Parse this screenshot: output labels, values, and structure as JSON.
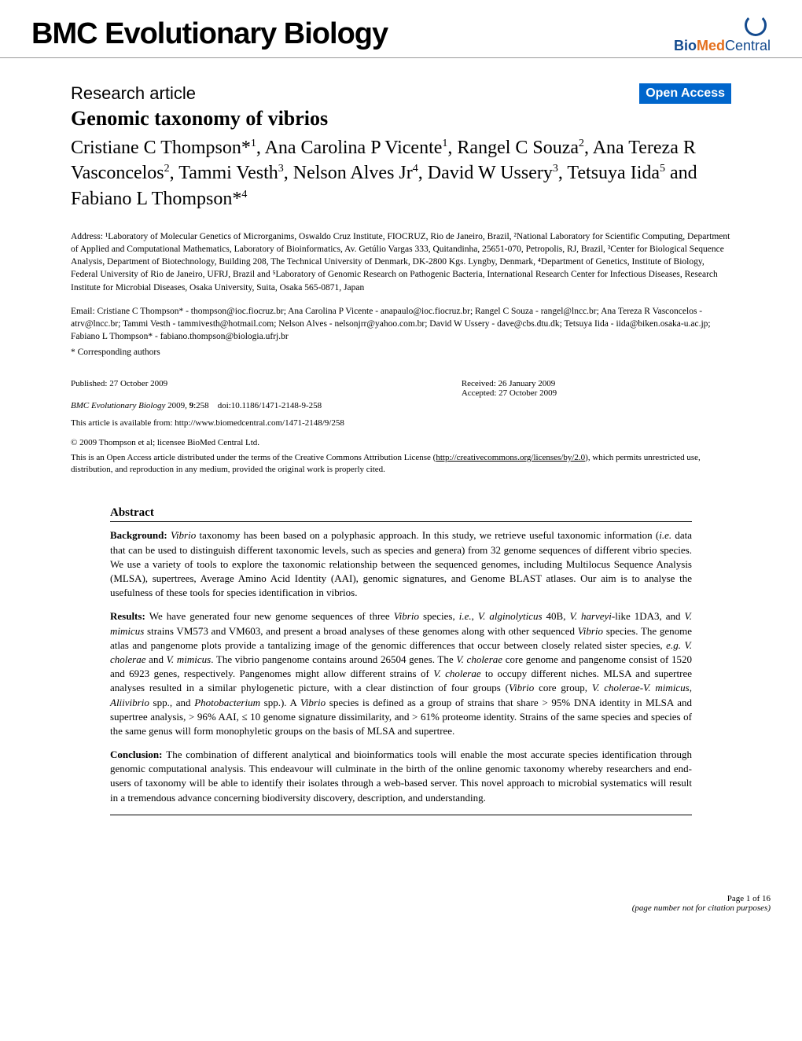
{
  "header": {
    "journal_title": "BMC Evolutionary Biology",
    "logo_text_bio": "Bio",
    "logo_text_med": "Med",
    "logo_text_central": " Central"
  },
  "article": {
    "type": "Research article",
    "open_access_badge": "Open Access",
    "title": "Genomic taxonomy of vibrios",
    "authors_html": "Cristiane C Thompson*<sup>1</sup>, Ana Carolina P Vicente<sup>1</sup>, Rangel C Souza<sup>2</sup>, Ana Tereza R Vasconcelos<sup>2</sup>, Tammi Vesth<sup>3</sup>, Nelson Alves Jr<sup>4</sup>, David W Ussery<sup>3</sup>, Tetsuya Iida<sup>5</sup> and Fabiano L Thompson*<sup>4</sup>",
    "affiliations": "Address: ¹Laboratory of Molecular Genetics of Microrganims, Oswaldo Cruz Institute, FIOCRUZ, Rio de Janeiro, Brazil, ²National Laboratory for Scientific Computing, Department of Applied and Computational Mathematics, Laboratory of Bioinformatics, Av. Getúlio Vargas 333, Quitandinha, 25651-070, Petropolis, RJ, Brazil, ³Center for Biological Sequence Analysis, Department of Biotechnology, Building 208, The Technical University of Denmark, DK-2800 Kgs. Lyngby, Denmark, ⁴Department of Genetics, Institute of Biology, Federal University of Rio de Janeiro, UFRJ, Brazil and ⁵Laboratory of Genomic Research on Pathogenic Bacteria, International Research Center for Infectious Diseases, Research Institute for Microbial Diseases, Osaka University, Suita, Osaka 565-0871, Japan",
    "emails": "Email: Cristiane C Thompson* - thompson@ioc.fiocruz.br; Ana Carolina P Vicente - anapaulo@ioc.fiocruz.br; Rangel C Souza - rangel@lncc.br; Ana Tereza R Vasconcelos - atrv@lncc.br; Tammi Vesth - tammivesth@hotmail.com; Nelson Alves - nelsonjrr@yahoo.com.br; David W Ussery - dave@cbs.dtu.dk; Tetsuya Iida - iida@biken.osaka-u.ac.jp; Fabiano L Thompson* - fabiano.thompson@biologia.ufrj.br",
    "corresponding": "* Corresponding authors"
  },
  "publication": {
    "published": "Published: 27 October 2009",
    "received": "Received: 26 January 2009",
    "accepted": "Accepted: 27 October 2009",
    "citation_journal": "BMC Evolutionary Biology",
    "citation_year_vol": " 2009, ",
    "citation_vol": "9",
    "citation_page": ":258",
    "citation_doi": "doi:10.1186/1471-2148-9-258",
    "url_label": "This article is available from: ",
    "url": "http://www.biomedcentral.com/1471-2148/9/258",
    "copyright": "© 2009 Thompson et al; licensee BioMed Central Ltd.",
    "license_pre": "This is an Open Access article distributed under the terms of the Creative Commons Attribution License (",
    "license_url": "http://creativecommons.org/licenses/by/2.0",
    "license_post": "), which permits unrestricted use, distribution, and reproduction in any medium, provided the original work is properly cited."
  },
  "abstract": {
    "heading": "Abstract",
    "background_label": "Background: ",
    "background_text": "Vibrio taxonomy has been based on a polyphasic approach. In this study, we retrieve useful taxonomic information (i.e. data that can be used to distinguish different taxonomic levels, such as species and genera) from 32 genome sequences of different vibrio species. We use a variety of tools to explore the taxonomic relationship between the sequenced genomes, including Multilocus Sequence Analysis (MLSA), supertrees, Average Amino Acid Identity (AAI), genomic signatures, and Genome BLAST atlases. Our aim is to analyse the usefulness of these tools for species identification in vibrios.",
    "results_label": "Results: ",
    "results_text": "We have generated four new genome sequences of three Vibrio species, i.e., V. alginolyticus 40B, V. harveyi-like 1DA3, and V. mimicus strains VM573 and VM603, and present a broad analyses of these genomes along with other sequenced Vibrio species. The genome atlas and pangenome plots provide a tantalizing image of the genomic differences that occur between closely related sister species, e.g. V. cholerae and V. mimicus. The vibrio pangenome contains around 26504 genes. The V. cholerae core genome and pangenome consist of 1520 and 6923 genes, respectively. Pangenomes might allow different strains of V. cholerae to occupy different niches. MLSA and supertree analyses resulted in a similar phylogenetic picture, with a clear distinction of four groups (Vibrio core group, V. cholerae-V. mimicus, Aliivibrio spp., and Photobacterium spp.). A Vibrio species is defined as a group of strains that share > 95% DNA identity in MLSA and supertree analysis, > 96% AAI, ≤ 10 genome signature dissimilarity, and > 61% proteome identity. Strains of the same species and species of the same genus will form monophyletic groups on the basis of MLSA and supertree.",
    "conclusion_label": "Conclusion: ",
    "conclusion_text": "The combination of different analytical and bioinformatics tools will enable the most accurate species identification through genomic computational analysis. This endeavour will culminate in the birth of the online genomic taxonomy whereby researchers and end-users of taxonomy will be able to identify their isolates through a web-based server. This novel approach to microbial systematics will result in a tremendous advance concerning biodiversity discovery, description, and understanding."
  },
  "footer": {
    "page": "Page 1 of 16",
    "note": "(page number not for citation purposes)"
  }
}
